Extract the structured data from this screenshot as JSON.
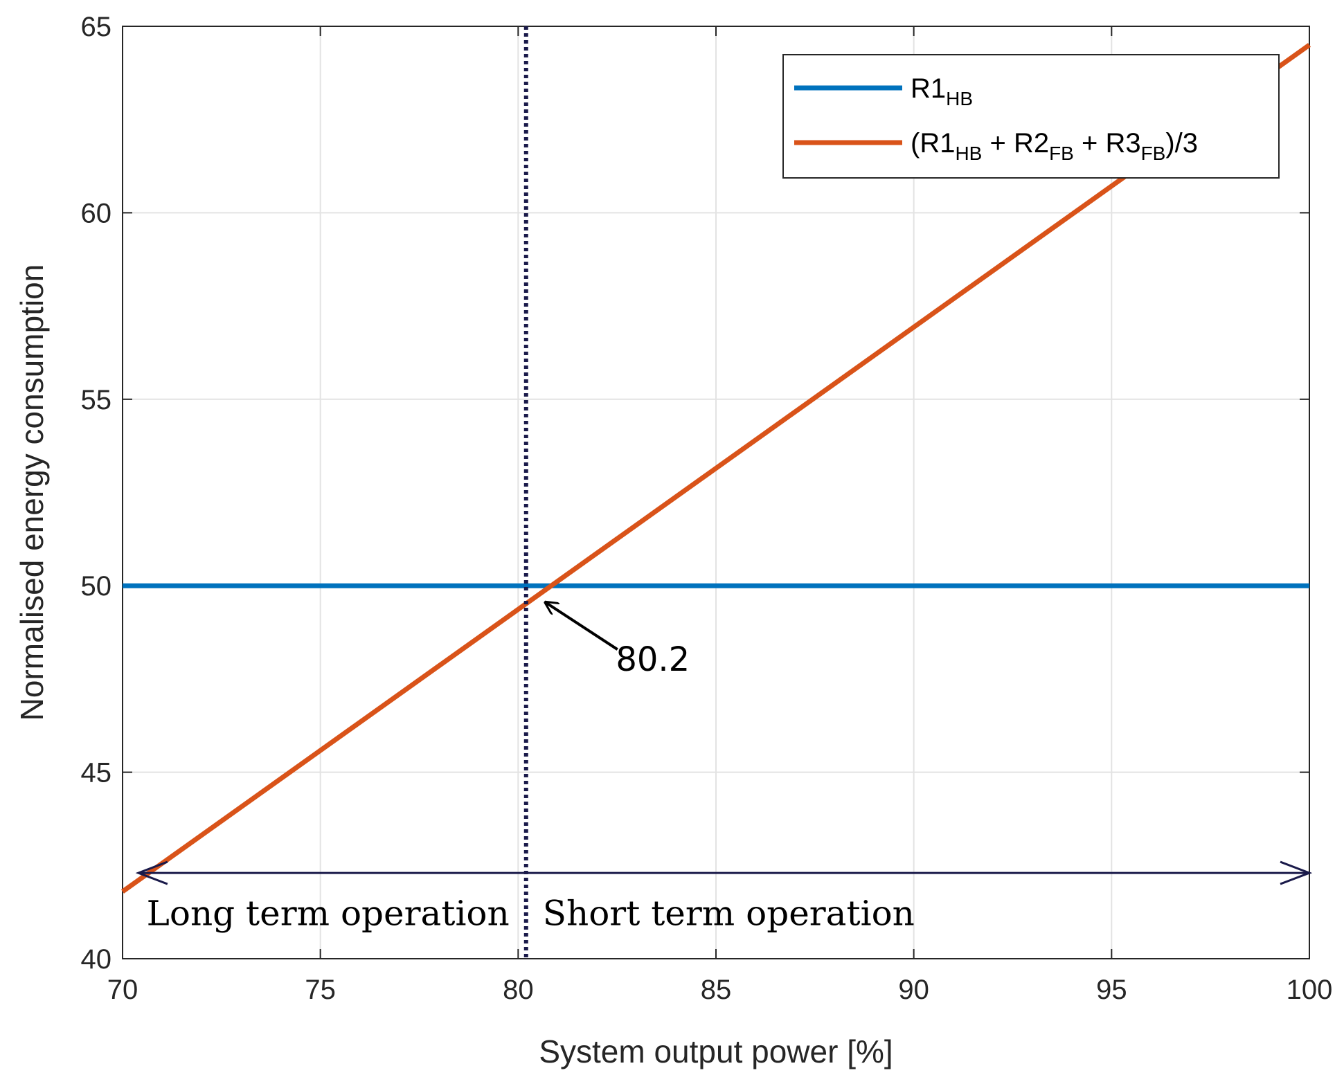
{
  "chart_data": {
    "type": "line",
    "xlabel": "System output power [%]",
    "ylabel": "Normalised energy consumption",
    "xlim": [
      70,
      100
    ],
    "ylim": [
      40,
      65
    ],
    "xticks": [
      "70",
      "75",
      "80",
      "85",
      "90",
      "95",
      "100"
    ],
    "yticks": [
      "40",
      "45",
      "50",
      "55",
      "60",
      "65"
    ],
    "grid": true,
    "legend_position": "top-right",
    "series": [
      {
        "name": "R1_HB",
        "legend_parts": [
          {
            "text": "R1",
            "sub": false
          },
          {
            "text": "HB",
            "sub": true
          }
        ],
        "color": "#0072BD",
        "x": [
          70,
          100
        ],
        "y": [
          50,
          50
        ]
      },
      {
        "name": "(R1_HB + R2_FB + R3_FB)/3",
        "legend_parts": [
          {
            "text": "(R1",
            "sub": false
          },
          {
            "text": "HB",
            "sub": true
          },
          {
            "text": " + R2",
            "sub": false
          },
          {
            "text": "FB",
            "sub": true
          },
          {
            "text": " + R3",
            "sub": false
          },
          {
            "text": "FB",
            "sub": true
          },
          {
            "text": ")/3",
            "sub": false
          }
        ],
        "color": "#D95319",
        "x": [
          70,
          100
        ],
        "y": [
          41.8,
          64.5
        ]
      }
    ],
    "vline": {
      "x": 80.2,
      "color": "#1a1a4a",
      "style": "dotted"
    },
    "annotations": [
      {
        "text": "80.2",
        "target": [
          80.2,
          50
        ]
      }
    ],
    "range_arrow": {
      "x": [
        70.4,
        100
      ],
      "y": 42.3,
      "color": "#1a1a4a"
    },
    "region_labels": [
      {
        "text": "Long term operation",
        "side": "left"
      },
      {
        "text": "Short term operation",
        "side": "right"
      }
    ]
  }
}
